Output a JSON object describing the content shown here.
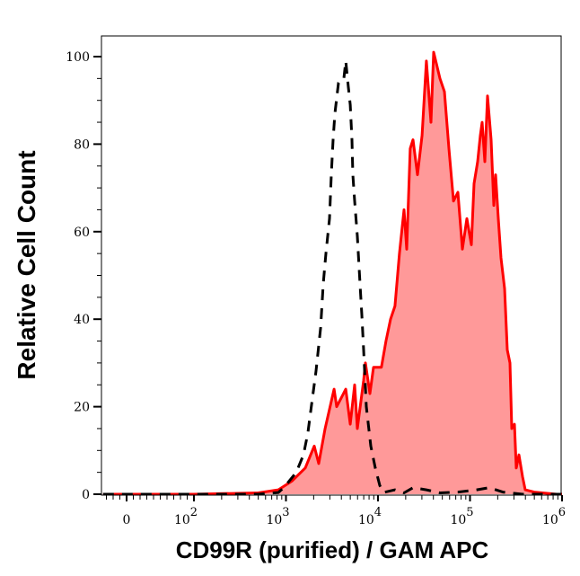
{
  "chart_data": {
    "type": "area",
    "title": "",
    "xlabel": "CD99R (purified) / GAM APC",
    "ylabel": "Relative Cell Count",
    "x_scale": "biexponential (linear near 0, log above 10^2)",
    "xlim": [
      -35,
      1000000
    ],
    "ylim": [
      0,
      105
    ],
    "grid": false,
    "legend": "none",
    "x_ticks": [
      {
        "value": 0,
        "base": "0",
        "exp": ""
      },
      {
        "value": 100,
        "base": "10",
        "exp": "2"
      },
      {
        "value": 1000,
        "base": "10",
        "exp": "3"
      },
      {
        "value": 10000,
        "base": "10",
        "exp": "4"
      },
      {
        "value": 100000,
        "base": "10",
        "exp": "5"
      },
      {
        "value": 1000000,
        "base": "10",
        "exp": "6"
      }
    ],
    "y_ticks": [
      "0",
      "20",
      "40",
      "60",
      "80",
      "100"
    ],
    "series": [
      {
        "style": "filled, solid line",
        "color": "#ff0000",
        "fill": "#ff9999",
        "x": [
          -35,
          0,
          100,
          500,
          826,
          1160,
          1620,
          2030,
          2270,
          2660,
          3330,
          3560,
          4460,
          4990,
          5570,
          5970,
          6980,
          7300,
          8170,
          8940,
          10900,
          12200,
          13700,
          15300,
          17100,
          19200,
          20500,
          22400,
          24000,
          26900,
          30100,
          33600,
          37600,
          40300,
          47100,
          52700,
          59000,
          66100,
          73800,
          82600,
          92500,
          103500,
          110700,
          121100,
          129500,
          135500,
          144900,
          154900,
          169500,
          181500,
          189700,
          202800,
          217000,
          237500,
          254100,
          271800,
          284400,
          304100,
          317700,
          340400,
          372400,
          398100,
          498800,
          873000,
          1000000
        ],
        "y": [
          0,
          0,
          0,
          0.3,
          1,
          3,
          6,
          11,
          7,
          15,
          24,
          20,
          24,
          16,
          25,
          15,
          26,
          30,
          23,
          29,
          29,
          35,
          40,
          43,
          55,
          65,
          56,
          79,
          81,
          73,
          82,
          99,
          85,
          101,
          95,
          92,
          79,
          67,
          69,
          56,
          63,
          57,
          71,
          76,
          82,
          85,
          76,
          91,
          81,
          66,
          73,
          63,
          54,
          47,
          33,
          30,
          15,
          16,
          6,
          9,
          4,
          1,
          0.5,
          0,
          0
        ]
      },
      {
        "style": "dashed line",
        "color": "#000000",
        "x": [
          -35,
          0,
          100,
          500,
          826,
          966,
          1295,
          1550,
          1730,
          1940,
          2120,
          2380,
          2540,
          2720,
          2970,
          3110,
          3250,
          3400,
          3720,
          3980,
          4260,
          4460,
          4760,
          4990,
          5210,
          5330,
          5570,
          5970,
          6380,
          6670,
          6980,
          7470,
          8360,
          9350,
          10470,
          11460,
          15300,
          19200,
          24000,
          33600,
          47100,
          73800,
          118000,
          162000,
          227000,
          372400,
          1000000
        ],
        "y": [
          0,
          0,
          0,
          0,
          0.4,
          1.7,
          5,
          9,
          14,
          22,
          28,
          38,
          48,
          55,
          63,
          73,
          81,
          87,
          94,
          95,
          95,
          99,
          93,
          89,
          81,
          73,
          67,
          59,
          48,
          41,
          33,
          20,
          11,
          6,
          2,
          0.4,
          1,
          0.3,
          1.5,
          1,
          0.3,
          0.5,
          1,
          1.5,
          0.5,
          0,
          0
        ]
      }
    ]
  }
}
